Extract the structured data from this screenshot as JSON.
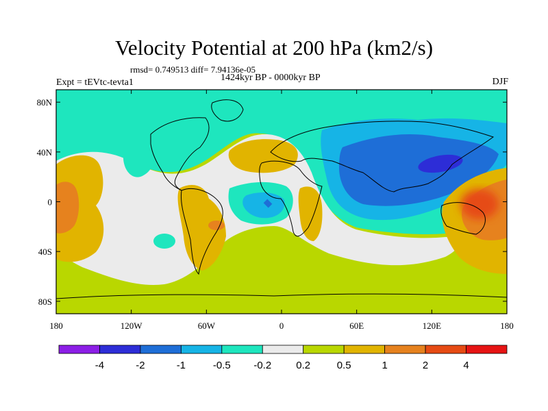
{
  "title": "Velocity Potential at 200 hPa (km2/s)",
  "stats": "rmsd= 0.749513 diff= 7.94136e-05",
  "period": "1424kyr BP - 0000kyr BP",
  "expt": "Expt = tEVtc-tevta1",
  "season": "DJF",
  "map": {
    "projection": "cylindrical equidistant",
    "lon_range": [
      -180,
      180
    ],
    "lat_range": [
      -90,
      90
    ],
    "x_ticks": [
      {
        "lon": -180,
        "label": "180"
      },
      {
        "lon": -120,
        "label": "120W"
      },
      {
        "lon": -60,
        "label": "60W"
      },
      {
        "lon": 0,
        "label": "0"
      },
      {
        "lon": 60,
        "label": "60E"
      },
      {
        "lon": 120,
        "label": "120E"
      },
      {
        "lon": 180,
        "label": "180"
      }
    ],
    "y_ticks": [
      {
        "lat": 80,
        "label": "80N"
      },
      {
        "lat": 40,
        "label": "40N"
      },
      {
        "lat": 0,
        "label": "0"
      },
      {
        "lat": -40,
        "label": "40S"
      },
      {
        "lat": -80,
        "label": "80S"
      }
    ]
  },
  "colorbar": {
    "colors": [
      "#8c1ee6",
      "#2d2dd7",
      "#1e6ed7",
      "#16b4e6",
      "#1ee6be",
      "#ebebeb",
      "#b9d700",
      "#e1b400",
      "#e6821e",
      "#e64b14",
      "#e61414"
    ],
    "labels": [
      "-4",
      "-2",
      "-1",
      "-0.5",
      "-0.2",
      "0.2",
      "0.5",
      "1",
      "2",
      "4"
    ]
  }
}
